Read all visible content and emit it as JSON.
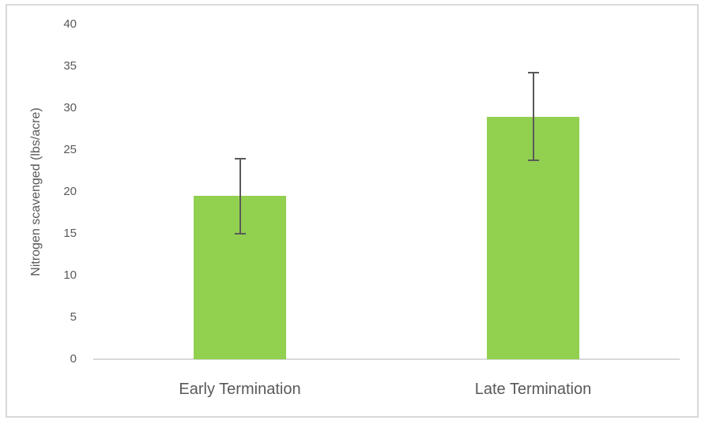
{
  "chart_data": {
    "type": "bar",
    "title": "",
    "xlabel": "",
    "ylabel": "Nitrogen scavenged (lbs/acre)",
    "categories": [
      "Early Termination",
      "Late Termination"
    ],
    "values": [
      19.5,
      29
    ],
    "error_plus": [
      4.5,
      5.2
    ],
    "error_minus": [
      4.5,
      5.2
    ],
    "ylim": [
      0,
      40
    ],
    "ytick_step": 5,
    "yticks": [
      0,
      5,
      10,
      15,
      20,
      25,
      30,
      35,
      40
    ],
    "grid": false,
    "legend": "none",
    "colors": {
      "bar_fill": "#92D050",
      "error_bar": "#595959",
      "axis_line": "#D9D9D9",
      "text": "#595959",
      "frame_border": "#D9D9D9",
      "background": "#FFFFFF"
    }
  }
}
